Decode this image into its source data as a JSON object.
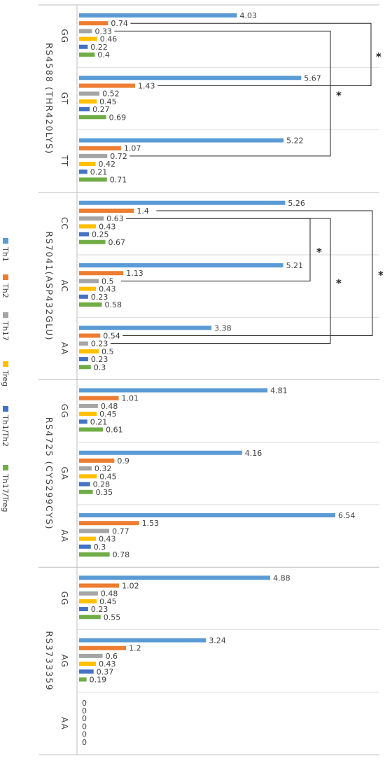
{
  "chart_data": {
    "type": "bar",
    "orientation": "horizontal",
    "xlim": [
      0,
      7
    ],
    "grid": false,
    "legend_position": "left",
    "series": [
      {
        "name": "Th1",
        "color": "#5B9BD5"
      },
      {
        "name": "Th2",
        "color": "#ED7D31"
      },
      {
        "name": "Th17",
        "color": "#A5A5A5"
      },
      {
        "name": "Treg",
        "color": "#FFC000"
      },
      {
        "name": "Th1/Th2",
        "color": "#4472C4"
      },
      {
        "name": "Th17/Treg",
        "color": "#70AD47"
      }
    ],
    "groups": [
      {
        "snp": "RS4588 (THR420LYS)",
        "genotypes": [
          {
            "label": "GG",
            "values": [
              4.03,
              0.74,
              0.33,
              0.46,
              0.22,
              0.4
            ]
          },
          {
            "label": "GT",
            "values": [
              5.67,
              1.43,
              0.52,
              0.45,
              0.27,
              0.69
            ]
          },
          {
            "label": "TT",
            "values": [
              5.22,
              1.07,
              0.72,
              0.42,
              0.21,
              0.71
            ]
          }
        ]
      },
      {
        "snp": "RS7041(ASP432GLU)",
        "genotypes": [
          {
            "label": "CC",
            "values": [
              5.26,
              1.4,
              0.63,
              0.43,
              0.25,
              0.67
            ]
          },
          {
            "label": "AC",
            "values": [
              5.21,
              1.13,
              0.5,
              0.43,
              0.23,
              0.58
            ]
          },
          {
            "label": "AA",
            "values": [
              3.38,
              0.54,
              0.23,
              0.5,
              0.23,
              0.3
            ]
          }
        ]
      },
      {
        "snp": "RS4725 (CYS299CYS)",
        "genotypes": [
          {
            "label": "GG",
            "values": [
              4.81,
              1.01,
              0.48,
              0.45,
              0.21,
              0.61
            ]
          },
          {
            "label": "GA",
            "values": [
              4.16,
              0.9,
              0.32,
              0.45,
              0.28,
              0.35
            ]
          },
          {
            "label": "AA",
            "values": [
              6.54,
              1.53,
              0.77,
              0.43,
              0.3,
              0.78
            ]
          }
        ]
      },
      {
        "snp": "RS3733359",
        "genotypes": [
          {
            "label": "GG",
            "values": [
              4.88,
              1.02,
              0.48,
              0.45,
              0.23,
              0.55
            ]
          },
          {
            "label": "AG",
            "values": [
              3.24,
              1.2,
              0.6,
              0.43,
              0.37,
              0.19
            ]
          },
          {
            "label": "AA",
            "values": [
              0,
              0,
              0,
              0,
              0,
              0
            ]
          }
        ]
      }
    ],
    "annotations": [
      {
        "text": "*",
        "from": "RS4588 GG Th2",
        "to": "RS4588 GT Th2"
      },
      {
        "text": "*",
        "from": "RS4588 GG Th17",
        "to": "RS4588 TT Th17"
      },
      {
        "text": "*",
        "from": "RS7041 CC Th17",
        "to": "RS7041 AC Th17"
      },
      {
        "text": "*",
        "from": "RS7041 CC Th17",
        "to": "RS7041 AA Th17"
      },
      {
        "text": "*",
        "from": "RS7041 CC Th2",
        "to": "RS7041 AA Th2"
      }
    ]
  }
}
